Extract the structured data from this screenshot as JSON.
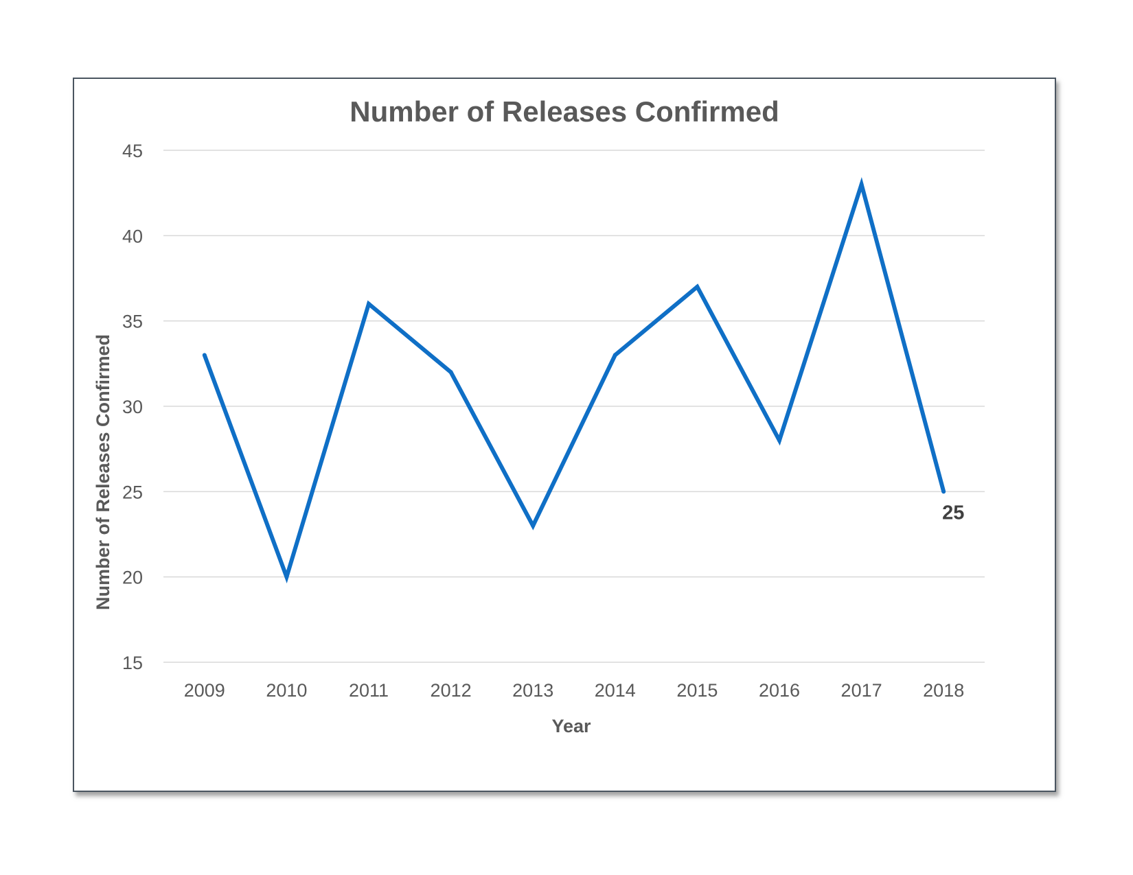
{
  "chart_data": {
    "type": "line",
    "title": "Number of Releases Confirmed",
    "xlabel": "Year",
    "ylabel": "Number of Releases Confirmed",
    "categories": [
      "2009",
      "2010",
      "2011",
      "2012",
      "2013",
      "2014",
      "2015",
      "2016",
      "2017",
      "2018"
    ],
    "series": [
      {
        "values": [
          33,
          20,
          36,
          32,
          23,
          33,
          37,
          28,
          43,
          25
        ],
        "color": "#0f6fc6"
      }
    ],
    "ylim": [
      15,
      45
    ],
    "yticks": [
      "15",
      "20",
      "25",
      "30",
      "35",
      "40",
      "45"
    ],
    "grid": "horizontal",
    "legend": "none",
    "data_labels": [
      {
        "category": "2018",
        "text": "25"
      }
    ],
    "colors": {
      "line": "#0f6fc6",
      "gridline": "#d9d9d9",
      "text": "#595959",
      "frame": "#4a5560"
    }
  }
}
